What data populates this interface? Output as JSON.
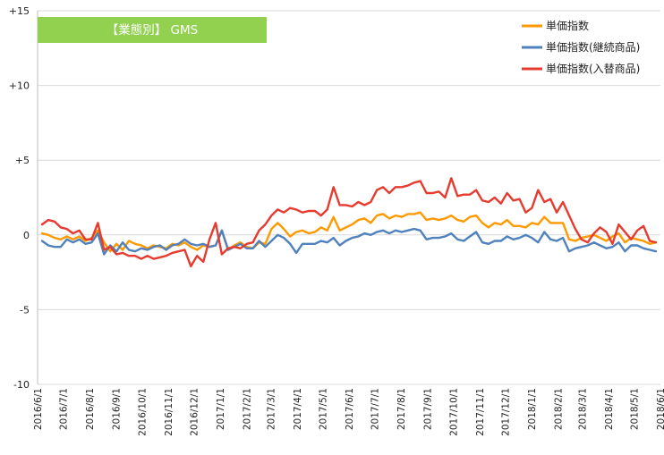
{
  "chart_data": {
    "type": "line",
    "title": "【業態別】 GMS",
    "title_box_color": "#92d050",
    "xlabel": "",
    "ylabel": "",
    "ylim": [
      -10,
      15
    ],
    "yticks": [
      15,
      10,
      5,
      0,
      -5,
      -10
    ],
    "ytick_labels": [
      "+15",
      "+10",
      "+5",
      "0",
      "-5",
      "-10"
    ],
    "grid": "horizontal",
    "legend_position": "top-right",
    "x_range": [
      "2016-06-01",
      "2018-06-01"
    ],
    "x_ticks": [
      "2016/6/1",
      "2016/7/1",
      "2016/8/1",
      "2016/9/1",
      "2016/10/1",
      "2016/11/1",
      "2016/12/1",
      "2017/1/1",
      "2017/2/1",
      "2017/3/1",
      "2017/4/1",
      "2017/5/1",
      "2017/6/1",
      "2017/7/1",
      "2017/8/1",
      "2017/9/1",
      "2017/10/1",
      "2017/11/1",
      "2017/12/1",
      "2018/1/1",
      "2018/2/1",
      "2018/3/1",
      "2018/4/1",
      "2018/5/1",
      "2018/6/1"
    ],
    "series": [
      {
        "name": "単価指数",
        "color": "#ff9900",
        "values": [
          0.1,
          0,
          -0.2,
          -0.3,
          -0.1,
          -0.3,
          -0.1,
          -0.4,
          -0.2,
          0.3,
          -0.5,
          -1.1,
          -0.6,
          -1.0,
          -0.4,
          -0.6,
          -0.7,
          -0.9,
          -0.7,
          -0.8,
          -0.9,
          -0.6,
          -0.7,
          -0.5,
          -0.8,
          -1.0,
          -0.7,
          -0.8,
          -0.7,
          0.3,
          -1.0,
          -0.7,
          -0.5,
          -0.8,
          -0.9,
          -0.5,
          -0.6,
          0.4,
          0.8,
          0.4,
          -0.1,
          0.2,
          0.3,
          0.1,
          0.2,
          0.5,
          0.3,
          1.2,
          0.3,
          0.5,
          0.7,
          1.0,
          1.1,
          0.8,
          1.3,
          1.4,
          1.1,
          1.3,
          1.2,
          1.4,
          1.4,
          1.5,
          1.0,
          1.1,
          1.0,
          1.1,
          1.3,
          1.0,
          0.9,
          1.2,
          1.3,
          0.8,
          0.5,
          0.8,
          0.7,
          1.0,
          0.6,
          0.6,
          0.5,
          0.8,
          0.7,
          1.2,
          0.8,
          0.8,
          0.8,
          -0.3,
          -0.4,
          -0.2,
          -0.1,
          0.0,
          -0.2,
          -0.4,
          -0.1,
          0.1,
          -0.5,
          -0.2,
          -0.3,
          -0.4,
          -0.6,
          -0.5
        ]
      },
      {
        "name": "単価指数(継続商品)",
        "color": "#4f81bd",
        "values": [
          -0.4,
          -0.7,
          -0.8,
          -0.8,
          -0.3,
          -0.5,
          -0.3,
          -0.6,
          -0.5,
          0.1,
          -1.3,
          -0.7,
          -1.1,
          -0.5,
          -1.0,
          -1.1,
          -0.9,
          -1.0,
          -0.8,
          -0.7,
          -1.0,
          -0.7,
          -0.6,
          -0.3,
          -0.6,
          -0.7,
          -0.6,
          -0.8,
          -0.7,
          0.3,
          -1.0,
          -0.8,
          -0.6,
          -0.9,
          -0.9,
          -0.4,
          -0.8,
          -0.4,
          0.0,
          -0.2,
          -0.6,
          -1.2,
          -0.6,
          -0.6,
          -0.6,
          -0.4,
          -0.5,
          -0.2,
          -0.7,
          -0.4,
          -0.2,
          -0.1,
          0.1,
          0.0,
          0.2,
          0.3,
          0.1,
          0.3,
          0.2,
          0.3,
          0.4,
          0.3,
          -0.3,
          -0.2,
          -0.2,
          -0.1,
          0.1,
          -0.3,
          -0.4,
          -0.1,
          0.2,
          -0.5,
          -0.6,
          -0.4,
          -0.4,
          -0.1,
          -0.3,
          -0.2,
          0.0,
          -0.2,
          -0.5,
          0.2,
          -0.3,
          -0.4,
          -0.2,
          -1.1,
          -0.9,
          -0.8,
          -0.7,
          -0.5,
          -0.7,
          -0.9,
          -0.8,
          -0.5,
          -1.1,
          -0.7,
          -0.7,
          -0.9,
          -1.0,
          -1.1
        ]
      },
      {
        "name": "単価指数(入替商品)",
        "color": "#e63b2e",
        "values": [
          0.7,
          1.0,
          0.9,
          0.5,
          0.4,
          0.1,
          0.3,
          -0.3,
          -0.3,
          0.8,
          -1.0,
          -0.8,
          -1.3,
          -1.2,
          -1.4,
          -1.4,
          -1.6,
          -1.4,
          -1.6,
          -1.5,
          -1.4,
          -1.2,
          -1.1,
          -1.0,
          -2.1,
          -1.4,
          -1.8,
          -0.3,
          0.8,
          -1.3,
          -0.9,
          -0.8,
          -0.9,
          -0.6,
          -0.5,
          0.3,
          0.7,
          1.3,
          1.7,
          1.5,
          1.8,
          1.7,
          1.5,
          1.6,
          1.6,
          1.3,
          1.7,
          3.2,
          2.0,
          2.0,
          1.9,
          2.2,
          2.0,
          2.2,
          3.0,
          3.2,
          2.8,
          3.2,
          3.2,
          3.3,
          3.5,
          3.6,
          2.8,
          2.8,
          2.9,
          2.5,
          3.8,
          2.6,
          2.7,
          2.7,
          3.0,
          2.3,
          2.2,
          2.5,
          2.1,
          2.8,
          2.3,
          2.4,
          1.5,
          1.8,
          3.0,
          2.2,
          2.4,
          1.5,
          2.2,
          1.3,
          0.4,
          -0.3,
          -0.5,
          0.1,
          0.5,
          0.2,
          -0.6,
          0.7,
          0.2,
          -0.3,
          0.3,
          0.6,
          -0.4,
          -0.5
        ]
      }
    ]
  }
}
